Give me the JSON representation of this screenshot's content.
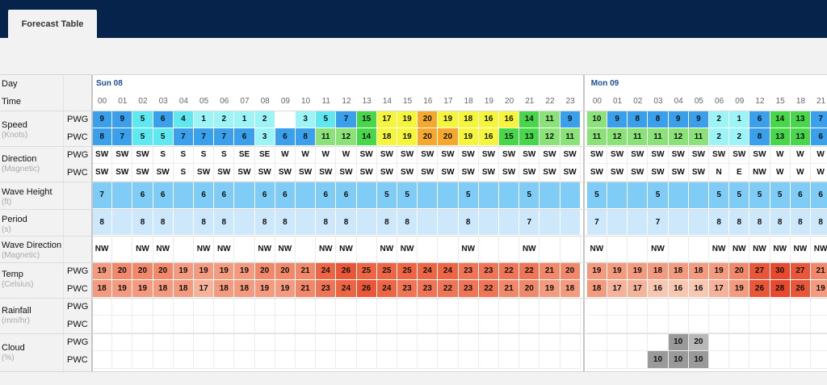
{
  "tab": {
    "label": "Forecast Table"
  },
  "labels": {
    "day": "Day",
    "time": "Time",
    "speed": "Speed",
    "speed_unit": "(Knots)",
    "direction": "Direction",
    "direction_unit": "(Magnetic)",
    "wave_height": "Wave Height",
    "wave_height_unit": "(ft)",
    "period": "Period",
    "period_unit": "(s)",
    "wave_direction": "Wave Direction",
    "wave_direction_unit": "(Magnetic)",
    "temp": "Temp",
    "temp_unit": "(Celsius)",
    "rainfall": "Rainfall",
    "rainfall_unit": "(mm/hr)",
    "cloud": "Cloud",
    "cloud_unit": "(%)",
    "pwg": "PWG",
    "pwc": "PWC"
  },
  "days": [
    {
      "label": "Sun 08",
      "start": 0
    },
    {
      "label": "Mon 09",
      "start": 24
    }
  ],
  "times": [
    "00",
    "01",
    "02",
    "03",
    "04",
    "05",
    "06",
    "07",
    "08",
    "09",
    "10",
    "11",
    "12",
    "13",
    "14",
    "15",
    "16",
    "17",
    "18",
    "19",
    "20",
    "21",
    "22",
    "23",
    "00",
    "01",
    "02",
    "03",
    "04",
    "05",
    "06",
    "09",
    "12",
    "15",
    "18",
    "21"
  ],
  "speed_pwg": [
    "9",
    "9",
    "5",
    "6",
    "4",
    "1",
    "2",
    "1",
    "2",
    "",
    "3",
    "5",
    "7",
    "15",
    "17",
    "19",
    "20",
    "19",
    "18",
    "16",
    "16",
    "14",
    "11",
    "9",
    "10",
    "9",
    "8",
    "8",
    "9",
    "9",
    "2",
    "1",
    "6",
    "14",
    "13",
    "7"
  ],
  "speed_pwc": [
    "8",
    "7",
    "5",
    "5",
    "7",
    "7",
    "7",
    "6",
    "3",
    "6",
    "8",
    "11",
    "12",
    "14",
    "18",
    "19",
    "20",
    "20",
    "19",
    "16",
    "15",
    "13",
    "12",
    "11",
    "11",
    "12",
    "11",
    "11",
    "12",
    "11",
    "2",
    "2",
    "8",
    "13",
    "13",
    "6"
  ],
  "dir_pwg": [
    "SW",
    "SW",
    "SW",
    "S",
    "S",
    "S",
    "S",
    "SE",
    "SE",
    "W",
    "W",
    "W",
    "W",
    "SW",
    "SW",
    "SW",
    "SW",
    "SW",
    "SW",
    "SW",
    "SW",
    "SW",
    "SW",
    "SW",
    "SW",
    "SW",
    "SW",
    "SW",
    "SW",
    "SW",
    "SW",
    "SW",
    "SW",
    "W",
    "W",
    "W"
  ],
  "dir_pwc": [
    "SW",
    "SW",
    "SW",
    "SW",
    "S",
    "SW",
    "SW",
    "SW",
    "SW",
    "SW",
    "SW",
    "SW",
    "SW",
    "SW",
    "SW",
    "SW",
    "SW",
    "SW",
    "SW",
    "SW",
    "SW",
    "SW",
    "SW",
    "SW",
    "SW",
    "SW",
    "SW",
    "SW",
    "SW",
    "SW",
    "N",
    "E",
    "NW",
    "W",
    "W",
    "W"
  ],
  "wave_height": [
    "7",
    "",
    "6",
    "6",
    "",
    "6",
    "6",
    "",
    "6",
    "6",
    "",
    "6",
    "6",
    "",
    "5",
    "5",
    "",
    "",
    "5",
    "",
    "",
    "5",
    "",
    "",
    "5",
    "",
    "",
    "5",
    "",
    "",
    "5",
    "5",
    "5",
    "5",
    "6",
    "6"
  ],
  "period": [
    "8",
    "",
    "8",
    "8",
    "",
    "8",
    "8",
    "",
    "8",
    "8",
    "",
    "8",
    "8",
    "",
    "8",
    "8",
    "",
    "",
    "8",
    "",
    "",
    "7",
    "",
    "",
    "7",
    "",
    "",
    "7",
    "",
    "",
    "8",
    "8",
    "8",
    "8",
    "8",
    "8"
  ],
  "wave_direction": [
    "NW",
    "",
    "NW",
    "NW",
    "",
    "NW",
    "NW",
    "",
    "NW",
    "NW",
    "",
    "NW",
    "NW",
    "",
    "NW",
    "NW",
    "",
    "",
    "NW",
    "",
    "",
    "NW",
    "",
    "",
    "NW",
    "",
    "",
    "NW",
    "",
    "",
    "NW",
    "NW",
    "NW",
    "NW",
    "NW",
    "NW"
  ],
  "temp_pwg": [
    "19",
    "20",
    "20",
    "20",
    "19",
    "19",
    "19",
    "19",
    "20",
    "20",
    "21",
    "24",
    "26",
    "25",
    "25",
    "25",
    "24",
    "24",
    "23",
    "23",
    "22",
    "22",
    "21",
    "20",
    "19",
    "19",
    "19",
    "18",
    "18",
    "18",
    "19",
    "20",
    "27",
    "30",
    "27",
    "21"
  ],
  "temp_pwc": [
    "18",
    "19",
    "19",
    "18",
    "18",
    "17",
    "18",
    "18",
    "19",
    "19",
    "21",
    "23",
    "24",
    "26",
    "24",
    "23",
    "23",
    "22",
    "23",
    "22",
    "21",
    "20",
    "19",
    "18",
    "18",
    "17",
    "17",
    "16",
    "16",
    "16",
    "17",
    "19",
    "26",
    "28",
    "26",
    "19"
  ],
  "rain_pwg": [
    "",
    "",
    "",
    "",
    "",
    "",
    "",
    "",
    "",
    "",
    "",
    "",
    "",
    "",
    "",
    "",
    "",
    "",
    "",
    "",
    "",
    "",
    "",
    "",
    "",
    "",
    "",
    "",
    "",
    "",
    "",
    "",
    "",
    "",
    "",
    ""
  ],
  "rain_pwc": [
    "",
    "",
    "",
    "",
    "",
    "",
    "",
    "",
    "",
    "",
    "",
    "",
    "",
    "",
    "",
    "",
    "",
    "",
    "",
    "",
    "",
    "",
    "",
    "",
    "",
    "",
    "",
    "",
    "",
    "",
    "",
    "",
    "",
    "",
    "",
    ""
  ],
  "cloud_pwg": [
    "",
    "",
    "",
    "",
    "",
    "",
    "",
    "",
    "",
    "",
    "",
    "",
    "",
    "",
    "",
    "",
    "",
    "",
    "",
    "",
    "",
    "",
    "",
    "",
    "",
    "",
    "",
    "",
    "10",
    "20",
    "",
    "",
    "",
    "",
    "",
    ""
  ],
  "cloud_pwc": [
    "",
    "",
    "",
    "",
    "",
    "",
    "",
    "",
    "",
    "",
    "",
    "",
    "",
    "",
    "",
    "",
    "",
    "",
    "",
    "",
    "",
    "",
    "",
    "",
    "",
    "",
    "",
    "10",
    "10",
    "10",
    "",
    "",
    "",
    "",
    "",
    ""
  ],
  "colors": {
    "header_bg": "#06244b",
    "wave_band": "#7fcdf7",
    "period_band": "#cde8fb",
    "cloud_dark": "#9a9a9a",
    "cloud_light": "#b8b8b8"
  }
}
